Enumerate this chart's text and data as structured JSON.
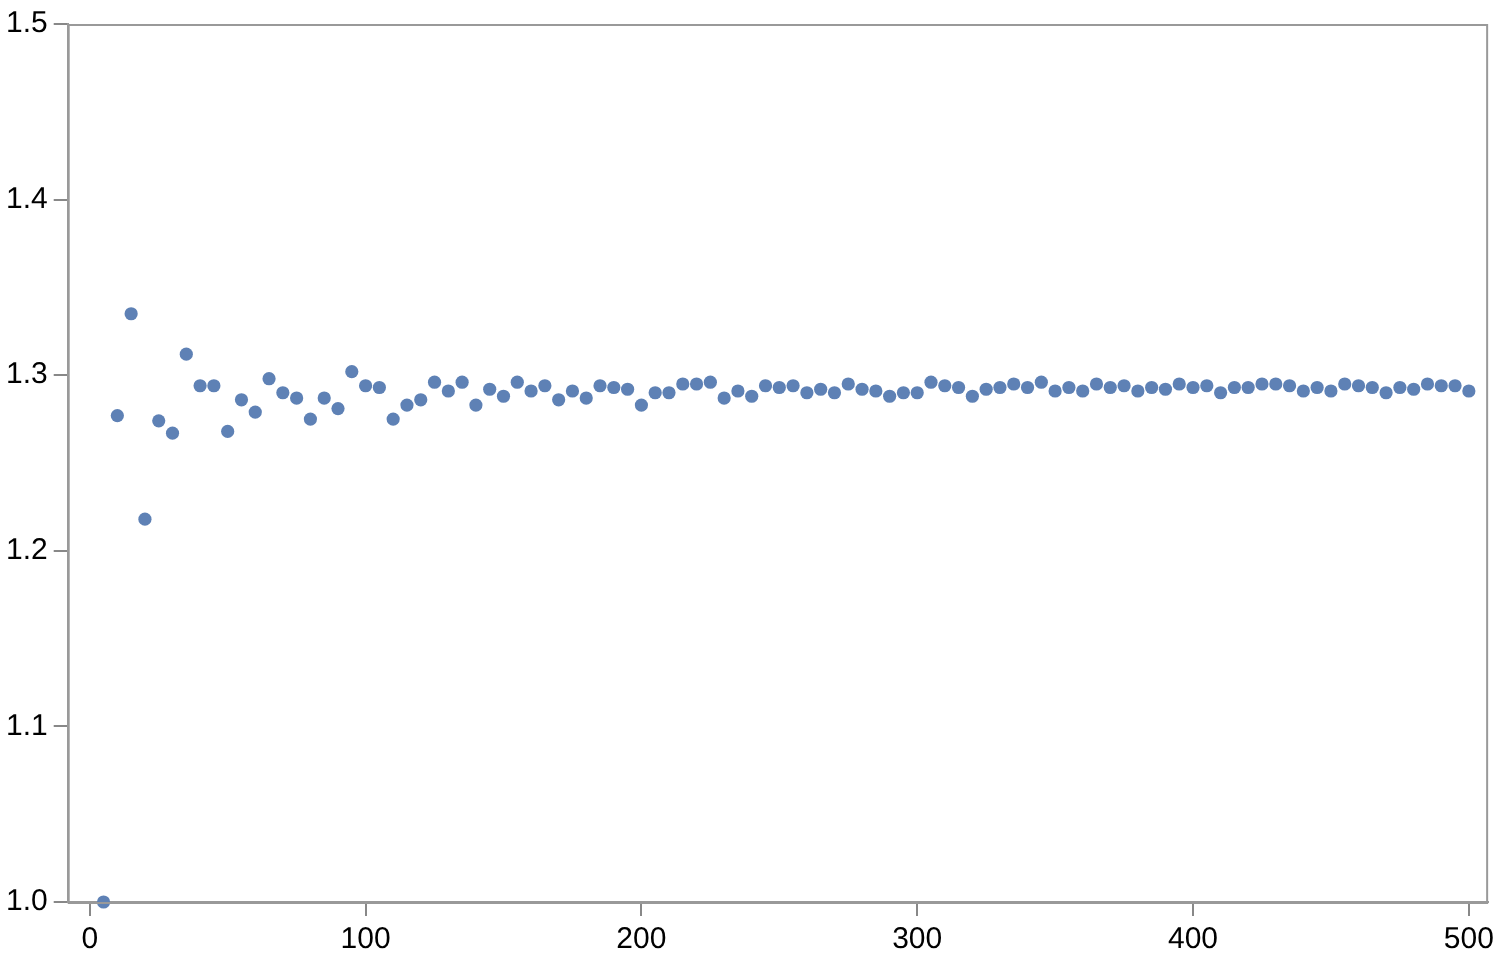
{
  "chart_data": {
    "type": "scatter",
    "xlim": [
      -8,
      507
    ],
    "ylim": [
      1.0,
      1.5
    ],
    "xticks": [
      0,
      100,
      200,
      300,
      400,
      500
    ],
    "yticks": [
      {
        "value": 1.0,
        "label": "1.0"
      },
      1.1,
      1.2,
      1.3,
      1.4,
      1.5
    ],
    "grid": false,
    "legend": false,
    "marker": "circle",
    "series": [
      {
        "color": "#5e81b5",
        "x": [
          5,
          10,
          15,
          20,
          25,
          30,
          35,
          40,
          45,
          50,
          55,
          60,
          65,
          70,
          75,
          80,
          85,
          90,
          95,
          100,
          105,
          110,
          115,
          120,
          125,
          130,
          135,
          140,
          145,
          150,
          155,
          160,
          165,
          170,
          175,
          180,
          185,
          190,
          195,
          200,
          205,
          210,
          215,
          220,
          225,
          230,
          235,
          240,
          245,
          250,
          255,
          260,
          265,
          270,
          275,
          280,
          285,
          290,
          295,
          300,
          305,
          310,
          315,
          320,
          325,
          330,
          335,
          340,
          345,
          350,
          355,
          360,
          365,
          370,
          375,
          380,
          385,
          390,
          395,
          400,
          405,
          410,
          415,
          420,
          425,
          430,
          435,
          440,
          445,
          450,
          455,
          460,
          465,
          470,
          475,
          480,
          485,
          490,
          495,
          500
        ],
        "values": [
          1.0,
          1.277,
          1.335,
          1.218,
          1.274,
          1.267,
          1.312,
          1.294,
          1.294,
          1.268,
          1.286,
          1.279,
          1.298,
          1.29,
          1.287,
          1.275,
          1.287,
          1.281,
          1.302,
          1.294,
          1.293,
          1.275,
          1.283,
          1.286,
          1.296,
          1.291,
          1.296,
          1.283,
          1.292,
          1.288,
          1.296,
          1.291,
          1.294,
          1.286,
          1.291,
          1.287,
          1.294,
          1.293,
          1.292,
          1.283,
          1.29,
          1.29,
          1.295,
          1.295,
          1.296,
          1.287,
          1.291,
          1.288,
          1.294,
          1.293,
          1.294,
          1.29,
          1.292,
          1.29,
          1.295,
          1.292,
          1.291,
          1.288,
          1.29,
          1.29,
          1.296,
          1.294,
          1.293,
          1.288,
          1.292,
          1.293,
          1.295,
          1.293,
          1.296,
          1.291,
          1.293,
          1.291,
          1.295,
          1.293,
          1.294,
          1.291,
          1.293,
          1.292,
          1.295,
          1.293,
          1.294,
          1.29,
          1.293,
          1.293,
          1.295,
          1.295,
          1.294,
          1.291,
          1.293,
          1.291,
          1.295,
          1.294,
          1.293,
          1.29,
          1.293,
          1.292,
          1.295,
          1.294,
          1.294,
          1.291
        ]
      }
    ]
  }
}
